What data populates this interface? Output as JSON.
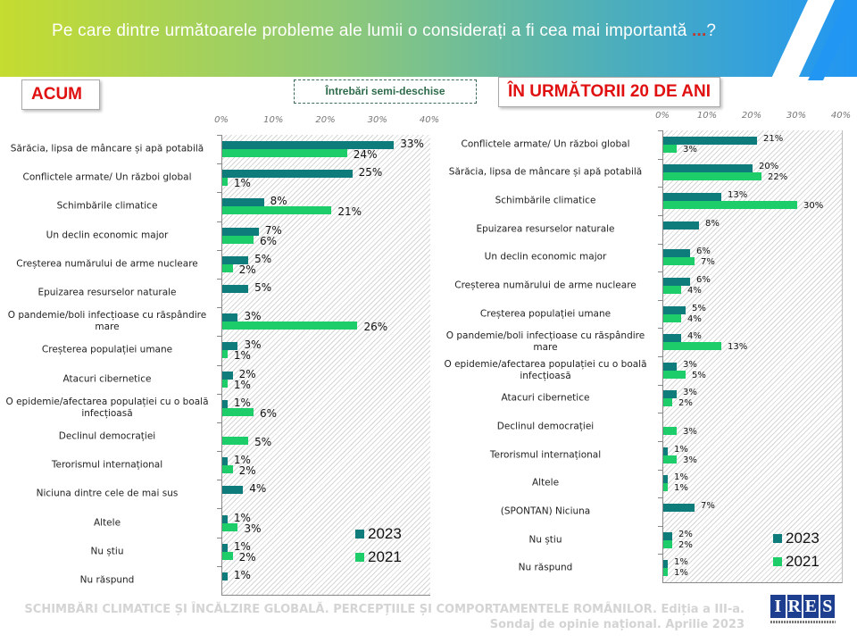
{
  "header": {
    "title": "Pe care dintre următoarele probleme ale lumii o considerați a fi cea mai importantă",
    "title_dots": "...",
    "title_end": "?"
  },
  "tabs": {
    "now": "ACUM",
    "future": "ÎN URMĂTORII 20 DE ANI"
  },
  "note": "Întrebări semi-deschise",
  "footer": {
    "line1": "SCHIMBĂRI CLIMATICE ȘI ÎNCĂLZIRE GLOBALĂ. PERCEPȚIILE ȘI COMPORTAMENTELE ROMÂNILOR. Ediția a III-a.",
    "line2": "Sondaj de opinie național. Aprilie 2023"
  },
  "logo": "IRES",
  "colors": {
    "s2023": "#0e7c7b",
    "s2021": "#1ccd6a"
  },
  "chart_data": [
    {
      "type": "bar",
      "orientation": "horizontal",
      "title": "ACUM",
      "xlim": [
        0,
        40
      ],
      "ticks": [
        "0%",
        "10%",
        "20%",
        "30%",
        "40%"
      ],
      "legend_position": "bottom-right",
      "categories": [
        "Sărăcia, lipsa de mâncare și apă potabilă",
        "Conflictele armate/ Un război global",
        "Schimbările climatice",
        "Un declin economic major",
        "Creșterea numărului de arme nucleare",
        "Epuizarea resurselor naturale",
        "O pandemie/boli infecțioase cu răspândire mare",
        "Creșterea populației umane",
        "Atacuri cibernetice",
        "O epidemie/afectarea populației cu o boală infecțioasă",
        "Declinul democrației",
        "Terorismul internațional",
        "Niciuna dintre cele de mai sus",
        "Altele",
        "Nu știu",
        "Nu răspund"
      ],
      "series": [
        {
          "name": "2023",
          "values": [
            33,
            25,
            8,
            7,
            5,
            5,
            3,
            3,
            2,
            1,
            null,
            1,
            4,
            1,
            1,
            1
          ]
        },
        {
          "name": "2021",
          "values": [
            24,
            1,
            21,
            6,
            2,
            null,
            26,
            1,
            1,
            6,
            5,
            2,
            null,
            3,
            2,
            null
          ]
        }
      ]
    },
    {
      "type": "bar",
      "orientation": "horizontal",
      "title": "ÎN URMĂTORII 20 DE ANI",
      "xlim": [
        0,
        40
      ],
      "ticks": [
        "0%",
        "10%",
        "20%",
        "30%",
        "40%"
      ],
      "legend_position": "bottom-right",
      "categories": [
        "Conflictele armate/ Un război global",
        "Sărăcia, lipsa de mâncare și apă potabilă",
        "Schimbările climatice",
        "Epuizarea resurselor naturale",
        "Un declin economic major",
        "Creșterea numărului de arme nucleare",
        "Creșterea populației umane",
        "O pandemie/boli infecțioase cu răspândire mare",
        "O epidemie/afectarea populației cu o boală infecțioasă",
        "Atacuri cibernetice",
        "Declinul democrației",
        "Terorismul internațional",
        "Altele",
        "(SPONTAN) Niciuna",
        "Nu știu",
        "Nu răspund"
      ],
      "series": [
        {
          "name": "2023",
          "values": [
            21,
            20,
            13,
            8,
            6,
            6,
            5,
            4,
            3,
            3,
            null,
            1,
            1,
            7,
            2,
            1
          ]
        },
        {
          "name": "2021",
          "values": [
            3,
            22,
            30,
            null,
            7,
            4,
            4,
            13,
            5,
            2,
            3,
            3,
            1,
            null,
            2,
            1
          ]
        }
      ]
    }
  ]
}
